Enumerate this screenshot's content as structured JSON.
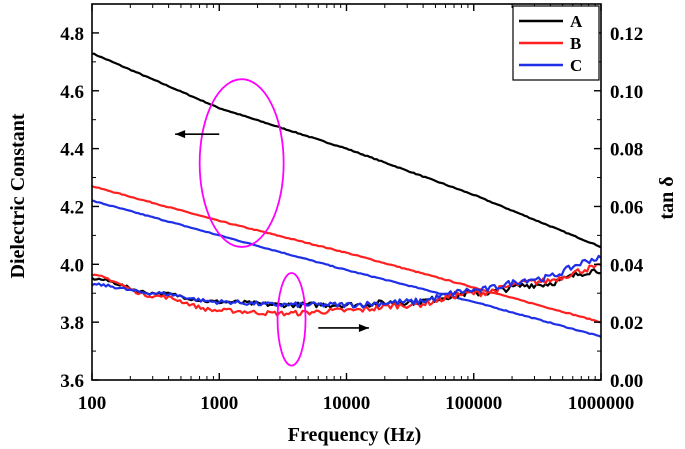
{
  "chart_data": {
    "type": "line",
    "title": "",
    "xlabel": "Frequency (Hz)",
    "ylabel_left": "Dielectric Constant",
    "ylabel_right": "tan δ",
    "x_scale": "log",
    "xlim": [
      100,
      1000000
    ],
    "ylim_left": [
      3.6,
      4.9
    ],
    "ylim_right": [
      0.0,
      0.13
    ],
    "x_ticks": [
      100,
      1000,
      10000,
      100000,
      1000000
    ],
    "x_tick_labels": [
      "100",
      "1000",
      "10000",
      "100000",
      "1000000"
    ],
    "y_left_ticks": [
      3.6,
      3.8,
      4.0,
      4.2,
      4.4,
      4.6,
      4.8
    ],
    "y_left_tick_labels": [
      "3.6",
      "3.8",
      "4.0",
      "4.2",
      "4.4",
      "4.6",
      "4.8"
    ],
    "y_right_ticks": [
      0.0,
      0.02,
      0.04,
      0.06,
      0.08,
      0.1,
      0.12
    ],
    "y_right_tick_labels": [
      "0.00",
      "0.02",
      "0.04",
      "0.06",
      "0.08",
      "0.10",
      "0.12"
    ],
    "grid": false,
    "legend": {
      "placement": "top-right"
    },
    "series": [
      {
        "name": "A",
        "color": "#000000",
        "axis": "left",
        "quantity": "dielectric constant",
        "x": [
          100,
          1000,
          10000,
          100000,
          1000000
        ],
        "y": [
          4.73,
          4.54,
          4.4,
          4.24,
          4.06
        ]
      },
      {
        "name": "B",
        "color": "#ff2020",
        "axis": "left",
        "quantity": "dielectric constant",
        "x": [
          100,
          1000,
          10000,
          100000,
          1000000
        ],
        "y": [
          4.27,
          4.15,
          4.04,
          3.92,
          3.8
        ]
      },
      {
        "name": "C",
        "color": "#1f2fe8",
        "axis": "left",
        "quantity": "dielectric constant",
        "x": [
          100,
          1000,
          10000,
          100000,
          1000000
        ],
        "y": [
          4.22,
          4.1,
          3.98,
          3.87,
          3.75
        ]
      },
      {
        "name": "A",
        "color": "#000000",
        "axis": "right",
        "quantity": "tan δ",
        "x": [
          100,
          316,
          1000,
          3162,
          10000,
          31623,
          100000,
          316228,
          1000000
        ],
        "y": [
          0.035,
          0.03,
          0.027,
          0.026,
          0.026,
          0.027,
          0.03,
          0.033,
          0.038
        ]
      },
      {
        "name": "B",
        "color": "#ff2020",
        "axis": "right",
        "quantity": "tan δ",
        "x": [
          100,
          316,
          1000,
          3162,
          10000,
          31623,
          100000,
          316228,
          1000000
        ],
        "y": [
          0.036,
          0.029,
          0.024,
          0.023,
          0.024,
          0.026,
          0.03,
          0.034,
          0.039
        ]
      },
      {
        "name": "C",
        "color": "#1f2fe8",
        "axis": "right",
        "quantity": "tan δ",
        "x": [
          100,
          316,
          1000,
          3162,
          10000,
          31623,
          100000,
          316228,
          1000000
        ],
        "y": [
          0.033,
          0.03,
          0.027,
          0.026,
          0.026,
          0.027,
          0.031,
          0.035,
          0.042
        ]
      }
    ],
    "annotations": [
      {
        "kind": "ellipse",
        "color": "#ff00ff",
        "target_axis": "left",
        "cx": 1500,
        "cy": 4.35,
        "rx_decades": 0.33,
        "ry": 0.29
      },
      {
        "kind": "arrow",
        "color": "#000000",
        "target_axis": "left",
        "from": [
          1000,
          4.45
        ],
        "to": [
          450,
          4.45
        ]
      },
      {
        "kind": "ellipse",
        "color": "#ff00ff",
        "target_axis": "right",
        "cx": 3700,
        "cy": 0.021,
        "rx_decades": 0.11,
        "ry": 0.016
      },
      {
        "kind": "arrow",
        "color": "#000000",
        "target_axis": "right",
        "from": [
          6000,
          0.018
        ],
        "to": [
          15000,
          0.018
        ]
      }
    ]
  }
}
